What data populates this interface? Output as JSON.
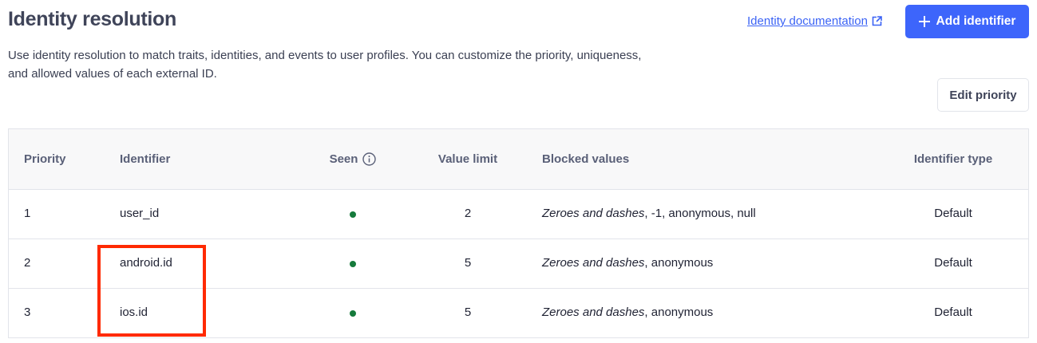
{
  "header": {
    "title": "Identity resolution",
    "description": "Use identity resolution to match traits, identities, and events to user profiles. You can customize the priority, uniqueness, and allowed values of each external ID.",
    "doc_link": "Identity documentation",
    "add_button": "Add identifier",
    "edit_priority_button": "Edit priority"
  },
  "table": {
    "columns": [
      "Priority",
      "Identifier",
      "Seen",
      "Value limit",
      "Blocked values",
      "Identifier type"
    ],
    "rows": [
      {
        "priority": "1",
        "identifier": "user_id",
        "seen": true,
        "value_limit": "2",
        "blocked_italic": "Zeroes and dashes",
        "blocked_rest": ", -1, anonymous, null",
        "type": "Default"
      },
      {
        "priority": "2",
        "identifier": "android.id",
        "seen": true,
        "value_limit": "5",
        "blocked_italic": "Zeroes and dashes",
        "blocked_rest": ", anonymous",
        "type": "Default"
      },
      {
        "priority": "3",
        "identifier": "ios.id",
        "seen": true,
        "value_limit": "5",
        "blocked_italic": "Zeroes and dashes",
        "blocked_rest": ", anonymous",
        "type": "Default"
      }
    ]
  },
  "colors": {
    "accent": "#3d65fb",
    "seen_dot": "#157a3b",
    "highlight": "#ff2a00"
  }
}
